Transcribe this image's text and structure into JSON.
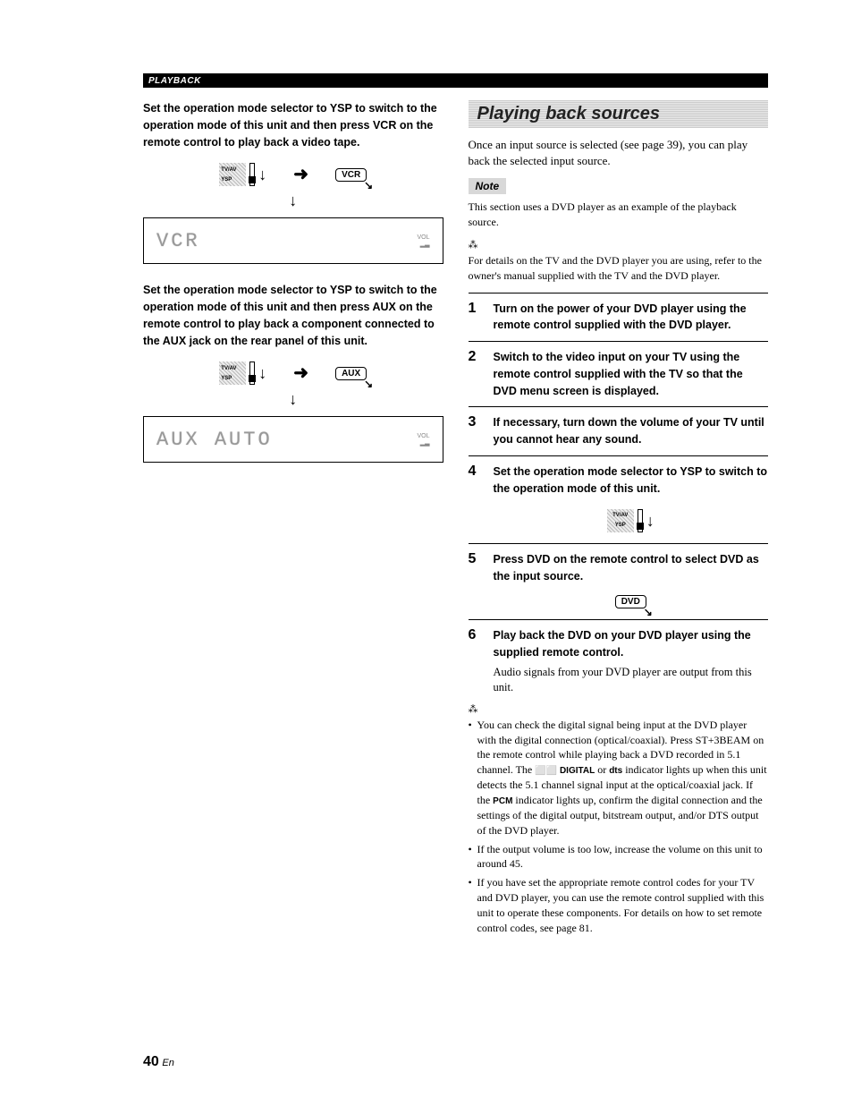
{
  "header": {
    "section_label": "PLAYBACK"
  },
  "left_col": {
    "para1": "Set the operation mode selector to YSP to switch to the operation mode of this unit and then press VCR on the remote control to play back a video tape.",
    "diagram1": {
      "switch_top": "TV/AV",
      "switch_bottom": "YSP",
      "btn_label": "VCR",
      "lcd_text": "VCR",
      "vol_label": "VOL"
    },
    "para2": "Set the operation mode selector to YSP to switch to the operation mode of this unit and then press AUX on the remote control to play back a component connected to the AUX jack on the rear panel of this unit.",
    "diagram2": {
      "switch_top": "TV/AV",
      "switch_bottom": "YSP",
      "btn_label": "AUX",
      "lcd_text_left": "AUX",
      "lcd_text_right": "AUTO",
      "vol_label": "VOL"
    }
  },
  "right_col": {
    "title": "Playing back sources",
    "intro": "Once an input source is selected (see page 39), you can play back the selected input source.",
    "note_label": "Note",
    "note_text": "This section uses a DVD player as an example of the playback source.",
    "tip_text": "For details on the TV and the DVD player you are using, refer to the owner's manual supplied with the TV and the DVD player.",
    "steps": [
      {
        "num": "1",
        "bold": "Turn on the power of your DVD player using the remote control supplied with the DVD player."
      },
      {
        "num": "2",
        "bold": "Switch to the video input on your TV using the remote control supplied with the TV so that the DVD menu screen is displayed."
      },
      {
        "num": "3",
        "bold": "If necessary, turn down the volume of your TV until you cannot hear any sound."
      },
      {
        "num": "4",
        "bold": "Set the operation mode selector to YSP to switch to the operation mode of this unit.",
        "diagram": "switch"
      },
      {
        "num": "5",
        "bold": "Press DVD on the remote control to select DVD as the input source.",
        "diagram": "dvd_btn",
        "btn_label": "DVD"
      },
      {
        "num": "6",
        "bold": "Play back the DVD on your DVD player using the supplied remote control.",
        "normal": "Audio signals from your DVD player are output from this unit."
      }
    ],
    "bullets_pre": "You can check the digital signal being input at the DVD player with the digital connection (optical/coaxial). Press ST+3BEAM on the remote control while playing back a DVD recorded in 5.1 channel. The ",
    "logo1": "⬜⬜ DIGITAL",
    "bullets_mid1": " or ",
    "logo2": "dts",
    "bullets_mid2": " indicator lights up when this unit detects the 5.1 channel signal input at the optical/coaxial jack. If the ",
    "logo3": "PCM",
    "bullets_post": " indicator lights up, confirm the digital connection and the settings of the digital output, bitstream output, and/or DTS output of the DVD player.",
    "bullet2": "If the output volume is too low, increase the volume on this unit to around 45.",
    "bullet3": "If you have set the appropriate remote control codes for your TV and DVD player, you can use the remote control supplied with this unit to operate these components. For details on how to set remote control codes, see page 81."
  },
  "footer": {
    "page_num": "40",
    "lang": "En"
  }
}
